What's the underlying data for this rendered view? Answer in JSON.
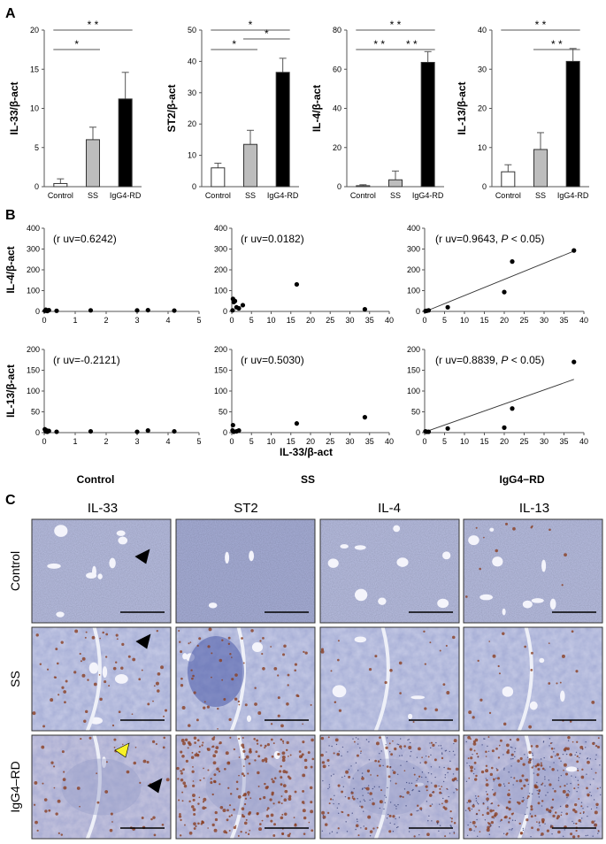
{
  "panel_labels": {
    "a": "A",
    "b": "B",
    "c": "C"
  },
  "chart_data": [
    {
      "type": "bar",
      "panel": "A",
      "categories": [
        "Control",
        "SS",
        "IgG4-RD"
      ],
      "values": [
        0.4,
        6.0,
        11.2
      ],
      "errors": [
        0.6,
        1.6,
        3.4
      ],
      "ylabel": "IL-33/β-act",
      "ylim": [
        0,
        20
      ],
      "yticks": [
        0,
        5,
        10,
        15,
        20
      ],
      "significance": [
        {
          "from": 0,
          "to": 2,
          "label": "* *",
          "level": 2
        },
        {
          "from": 0,
          "to": 1,
          "label": "*",
          "level": 1
        }
      ]
    },
    {
      "type": "bar",
      "panel": "A",
      "categories": [
        "Control",
        "SS",
        "IgG4-RD"
      ],
      "values": [
        6.0,
        13.5,
        36.5
      ],
      "errors": [
        1.5,
        4.5,
        4.5
      ],
      "ylabel": "ST2/β-act",
      "ylim": [
        0,
        50
      ],
      "yticks": [
        0,
        10,
        20,
        30,
        40,
        50
      ],
      "significance": [
        {
          "from": 0,
          "to": 2,
          "label": "*",
          "level": 2
        },
        {
          "from": 0,
          "to": 1,
          "label": "*",
          "level": 1
        },
        {
          "from": 1,
          "to": 2,
          "label": "*",
          "level": 1.5
        }
      ]
    },
    {
      "type": "bar",
      "panel": "A",
      "categories": [
        "Control",
        "SS",
        "IgG4-RD"
      ],
      "values": [
        0.5,
        3.5,
        63.5
      ],
      "errors": [
        0.5,
        4.5,
        5.5
      ],
      "ylabel": "IL-4/β-act",
      "ylim": [
        0,
        80
      ],
      "yticks": [
        0,
        20,
        40,
        60,
        80
      ],
      "significance": [
        {
          "from": 0,
          "to": 2,
          "label": "* *",
          "level": 2
        },
        {
          "from": 0,
          "to": 1,
          "label": "* *",
          "level": 1
        },
        {
          "from": 1,
          "to": 2,
          "label": "* *",
          "level": 1
        }
      ]
    },
    {
      "type": "bar",
      "panel": "A",
      "categories": [
        "Control",
        "SS",
        "IgG4-RD"
      ],
      "values": [
        3.8,
        9.5,
        32.0
      ],
      "errors": [
        1.8,
        4.3,
        3.3
      ],
      "ylabel": "IL-13/β-act",
      "ylim": [
        0,
        40
      ],
      "yticks": [
        0,
        10,
        20,
        30,
        40
      ],
      "significance": [
        {
          "from": 0,
          "to": 2,
          "label": "* *",
          "level": 2
        },
        {
          "from": 1,
          "to": 2,
          "label": "* *",
          "level": 1
        }
      ]
    },
    {
      "type": "scatter",
      "panel": "B",
      "row": 0,
      "col": 0,
      "xlim": [
        0,
        5
      ],
      "xticks": [
        0,
        1,
        2,
        3,
        4,
        5
      ],
      "ylim": [
        0,
        400
      ],
      "yticks": [
        0,
        100,
        200,
        300,
        400
      ],
      "ylabel": "IL-4/β-act",
      "annot": "(r uv=0.6242)",
      "x": [
        0.02,
        0.05,
        0.08,
        0.1,
        0.15,
        0.4,
        1.5,
        3.0,
        3.35,
        4.2
      ],
      "y": [
        3,
        8,
        5,
        2,
        6,
        3,
        5,
        5,
        6,
        4
      ]
    },
    {
      "type": "scatter",
      "panel": "B",
      "row": 0,
      "col": 1,
      "xlim": [
        0,
        40
      ],
      "xticks": [
        0,
        5,
        10,
        15,
        20,
        25,
        30,
        35,
        40
      ],
      "ylim": [
        0,
        400
      ],
      "yticks": [
        0,
        100,
        200,
        300,
        400
      ],
      "annot": "(r uv=0.0182)",
      "x": [
        0.2,
        0.3,
        0.5,
        0.8,
        1.2,
        1.8,
        2.8,
        16.5,
        33.8
      ],
      "y": [
        5,
        60,
        45,
        50,
        20,
        15,
        30,
        130,
        10
      ]
    },
    {
      "type": "scatter",
      "panel": "B",
      "row": 0,
      "col": 2,
      "xlim": [
        0,
        40
      ],
      "xticks": [
        0,
        5,
        10,
        15,
        20,
        25,
        30,
        35,
        40
      ],
      "ylim": [
        0,
        400
      ],
      "yticks": [
        0,
        100,
        200,
        300,
        400
      ],
      "annot": "(r uv=0.9643, ",
      "annot_p": "P",
      "annot_tail": " < 0.05)",
      "x": [
        0.2,
        0.5,
        1.0,
        5.8,
        20.0,
        22.0,
        37.5
      ],
      "y": [
        2,
        3,
        5,
        20,
        93,
        240,
        293
      ],
      "trend": [
        [
          0.2,
          -5
        ],
        [
          37.5,
          290
        ]
      ]
    },
    {
      "type": "scatter",
      "panel": "B",
      "row": 1,
      "col": 0,
      "xlim": [
        0,
        5
      ],
      "xticks": [
        0,
        1,
        2,
        3,
        4,
        5
      ],
      "ylim": [
        0,
        200
      ],
      "yticks": [
        0,
        50,
        100,
        150,
        200
      ],
      "ylabel": "IL-13/β-act",
      "annot": "(r uv=-0.2121)",
      "x": [
        0.02,
        0.05,
        0.08,
        0.1,
        0.15,
        0.4,
        1.5,
        3.0,
        3.35,
        4.2
      ],
      "y": [
        8,
        3,
        5,
        2,
        4,
        2,
        3,
        2,
        5,
        3
      ]
    },
    {
      "type": "scatter",
      "panel": "B",
      "row": 1,
      "col": 1,
      "xlim": [
        0,
        40
      ],
      "xticks": [
        0,
        5,
        10,
        15,
        20,
        25,
        30,
        35,
        40
      ],
      "ylim": [
        0,
        200
      ],
      "yticks": [
        0,
        50,
        100,
        150,
        200
      ],
      "annot": "(r uv=0.5030)",
      "xlabel": "IL-33/β-act",
      "x": [
        0.2,
        0.3,
        0.5,
        1.2,
        1.8,
        16.5,
        33.8
      ],
      "y": [
        5,
        18,
        2,
        3,
        5,
        22,
        37
      ]
    },
    {
      "type": "scatter",
      "panel": "B",
      "row": 1,
      "col": 2,
      "xlim": [
        0,
        40
      ],
      "xticks": [
        0,
        5,
        10,
        15,
        20,
        25,
        30,
        35,
        40
      ],
      "ylim": [
        0,
        200
      ],
      "yticks": [
        0,
        50,
        100,
        150,
        200
      ],
      "annot": "(r uv=0.8839, ",
      "annot_p": "P",
      "annot_tail": " < 0.05)",
      "x": [
        0.2,
        0.5,
        1.0,
        5.8,
        20.0,
        22.0,
        37.5
      ],
      "y": [
        3,
        2,
        2,
        10,
        12,
        58,
        170
      ],
      "trend": [
        [
          0.2,
          2
        ],
        [
          37.5,
          128
        ]
      ]
    }
  ],
  "scatter_groups": [
    "Control",
    "SS",
    "IgG4−RD"
  ],
  "histology": {
    "columns": [
      "IL-33",
      "ST2",
      "IL-4",
      "IL-13"
    ],
    "rows": [
      "Control",
      "SS",
      "IgG4–RD"
    ],
    "colors": {
      "control_bg": "#b9bfe2",
      "control_bg2": "#a9b0d9",
      "ss_bg": "#c6cbe6",
      "ss_dark": "#4a5aa8",
      "igg_bg": "#c7c6df",
      "brown": "#8a3f22",
      "arrow_black": "#000000",
      "arrow_yellow": "#f7f128"
    }
  }
}
